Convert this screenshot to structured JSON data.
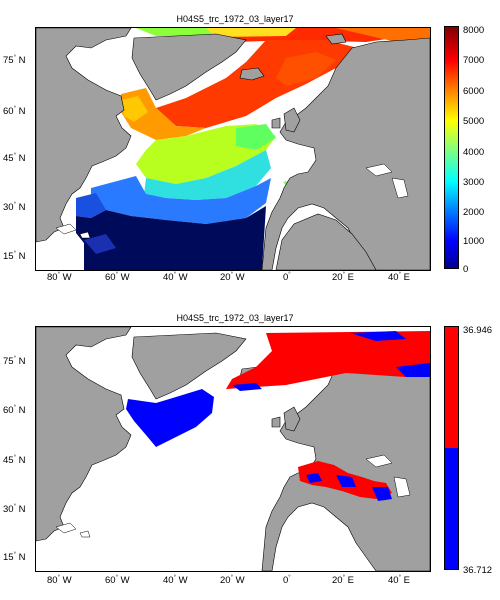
{
  "panels": [
    {
      "id": "top",
      "title": "H04S5_trc_1972_03_layer17",
      "lat_ticks": [
        {
          "value": 75,
          "label": "75",
          "hemi": "N"
        },
        {
          "value": 60,
          "label": "60",
          "hemi": "N"
        },
        {
          "value": 45,
          "label": "45",
          "hemi": "N"
        },
        {
          "value": 30,
          "label": "30",
          "hemi": "N"
        },
        {
          "value": 15,
          "label": "15",
          "hemi": "N"
        }
      ],
      "lon_ticks": [
        {
          "value": -80,
          "label": "80",
          "hemi": "W"
        },
        {
          "value": -60,
          "label": "60",
          "hemi": "W"
        },
        {
          "value": -40,
          "label": "40",
          "hemi": "W"
        },
        {
          "value": -20,
          "label": "20",
          "hemi": "W"
        },
        {
          "value": 0,
          "label": "0",
          "hemi": ""
        },
        {
          "value": 20,
          "label": "20",
          "hemi": "E"
        },
        {
          "value": 40,
          "label": "40",
          "hemi": "E"
        }
      ],
      "colorbar": {
        "type": "continuous",
        "colormap": "jet",
        "min": 0,
        "max": 8000,
        "ticks": [
          "0",
          "1000",
          "2000",
          "3000",
          "4000",
          "5000",
          "6000",
          "7000",
          "8000"
        ]
      },
      "colors": {
        "land": "#a0a0a0",
        "ocean_nodata": "#ffffff"
      }
    },
    {
      "id": "bottom",
      "title": "H04S5_trc_1972_03_layer17",
      "lat_ticks": [
        {
          "value": 75,
          "label": "75",
          "hemi": "N"
        },
        {
          "value": 60,
          "label": "60",
          "hemi": "N"
        },
        {
          "value": 45,
          "label": "45",
          "hemi": "N"
        },
        {
          "value": 30,
          "label": "30",
          "hemi": "N"
        },
        {
          "value": 15,
          "label": "15",
          "hemi": "N"
        }
      ],
      "lon_ticks": [
        {
          "value": -80,
          "label": "80",
          "hemi": "W"
        },
        {
          "value": -60,
          "label": "60",
          "hemi": "W"
        },
        {
          "value": -40,
          "label": "40",
          "hemi": "W"
        },
        {
          "value": -20,
          "label": "20",
          "hemi": "W"
        },
        {
          "value": 0,
          "label": "0",
          "hemi": ""
        },
        {
          "value": 20,
          "label": "20",
          "hemi": "E"
        },
        {
          "value": 40,
          "label": "40",
          "hemi": "E"
        }
      ],
      "colorbar": {
        "type": "two-class",
        "classes": [
          {
            "color": "#ff0000",
            "label": "36.946"
          },
          {
            "color": "#0000ff",
            "label": "36.712"
          }
        ]
      },
      "colors": {
        "land": "#a0a0a0",
        "ocean_nodata": "#ffffff"
      }
    }
  ]
}
